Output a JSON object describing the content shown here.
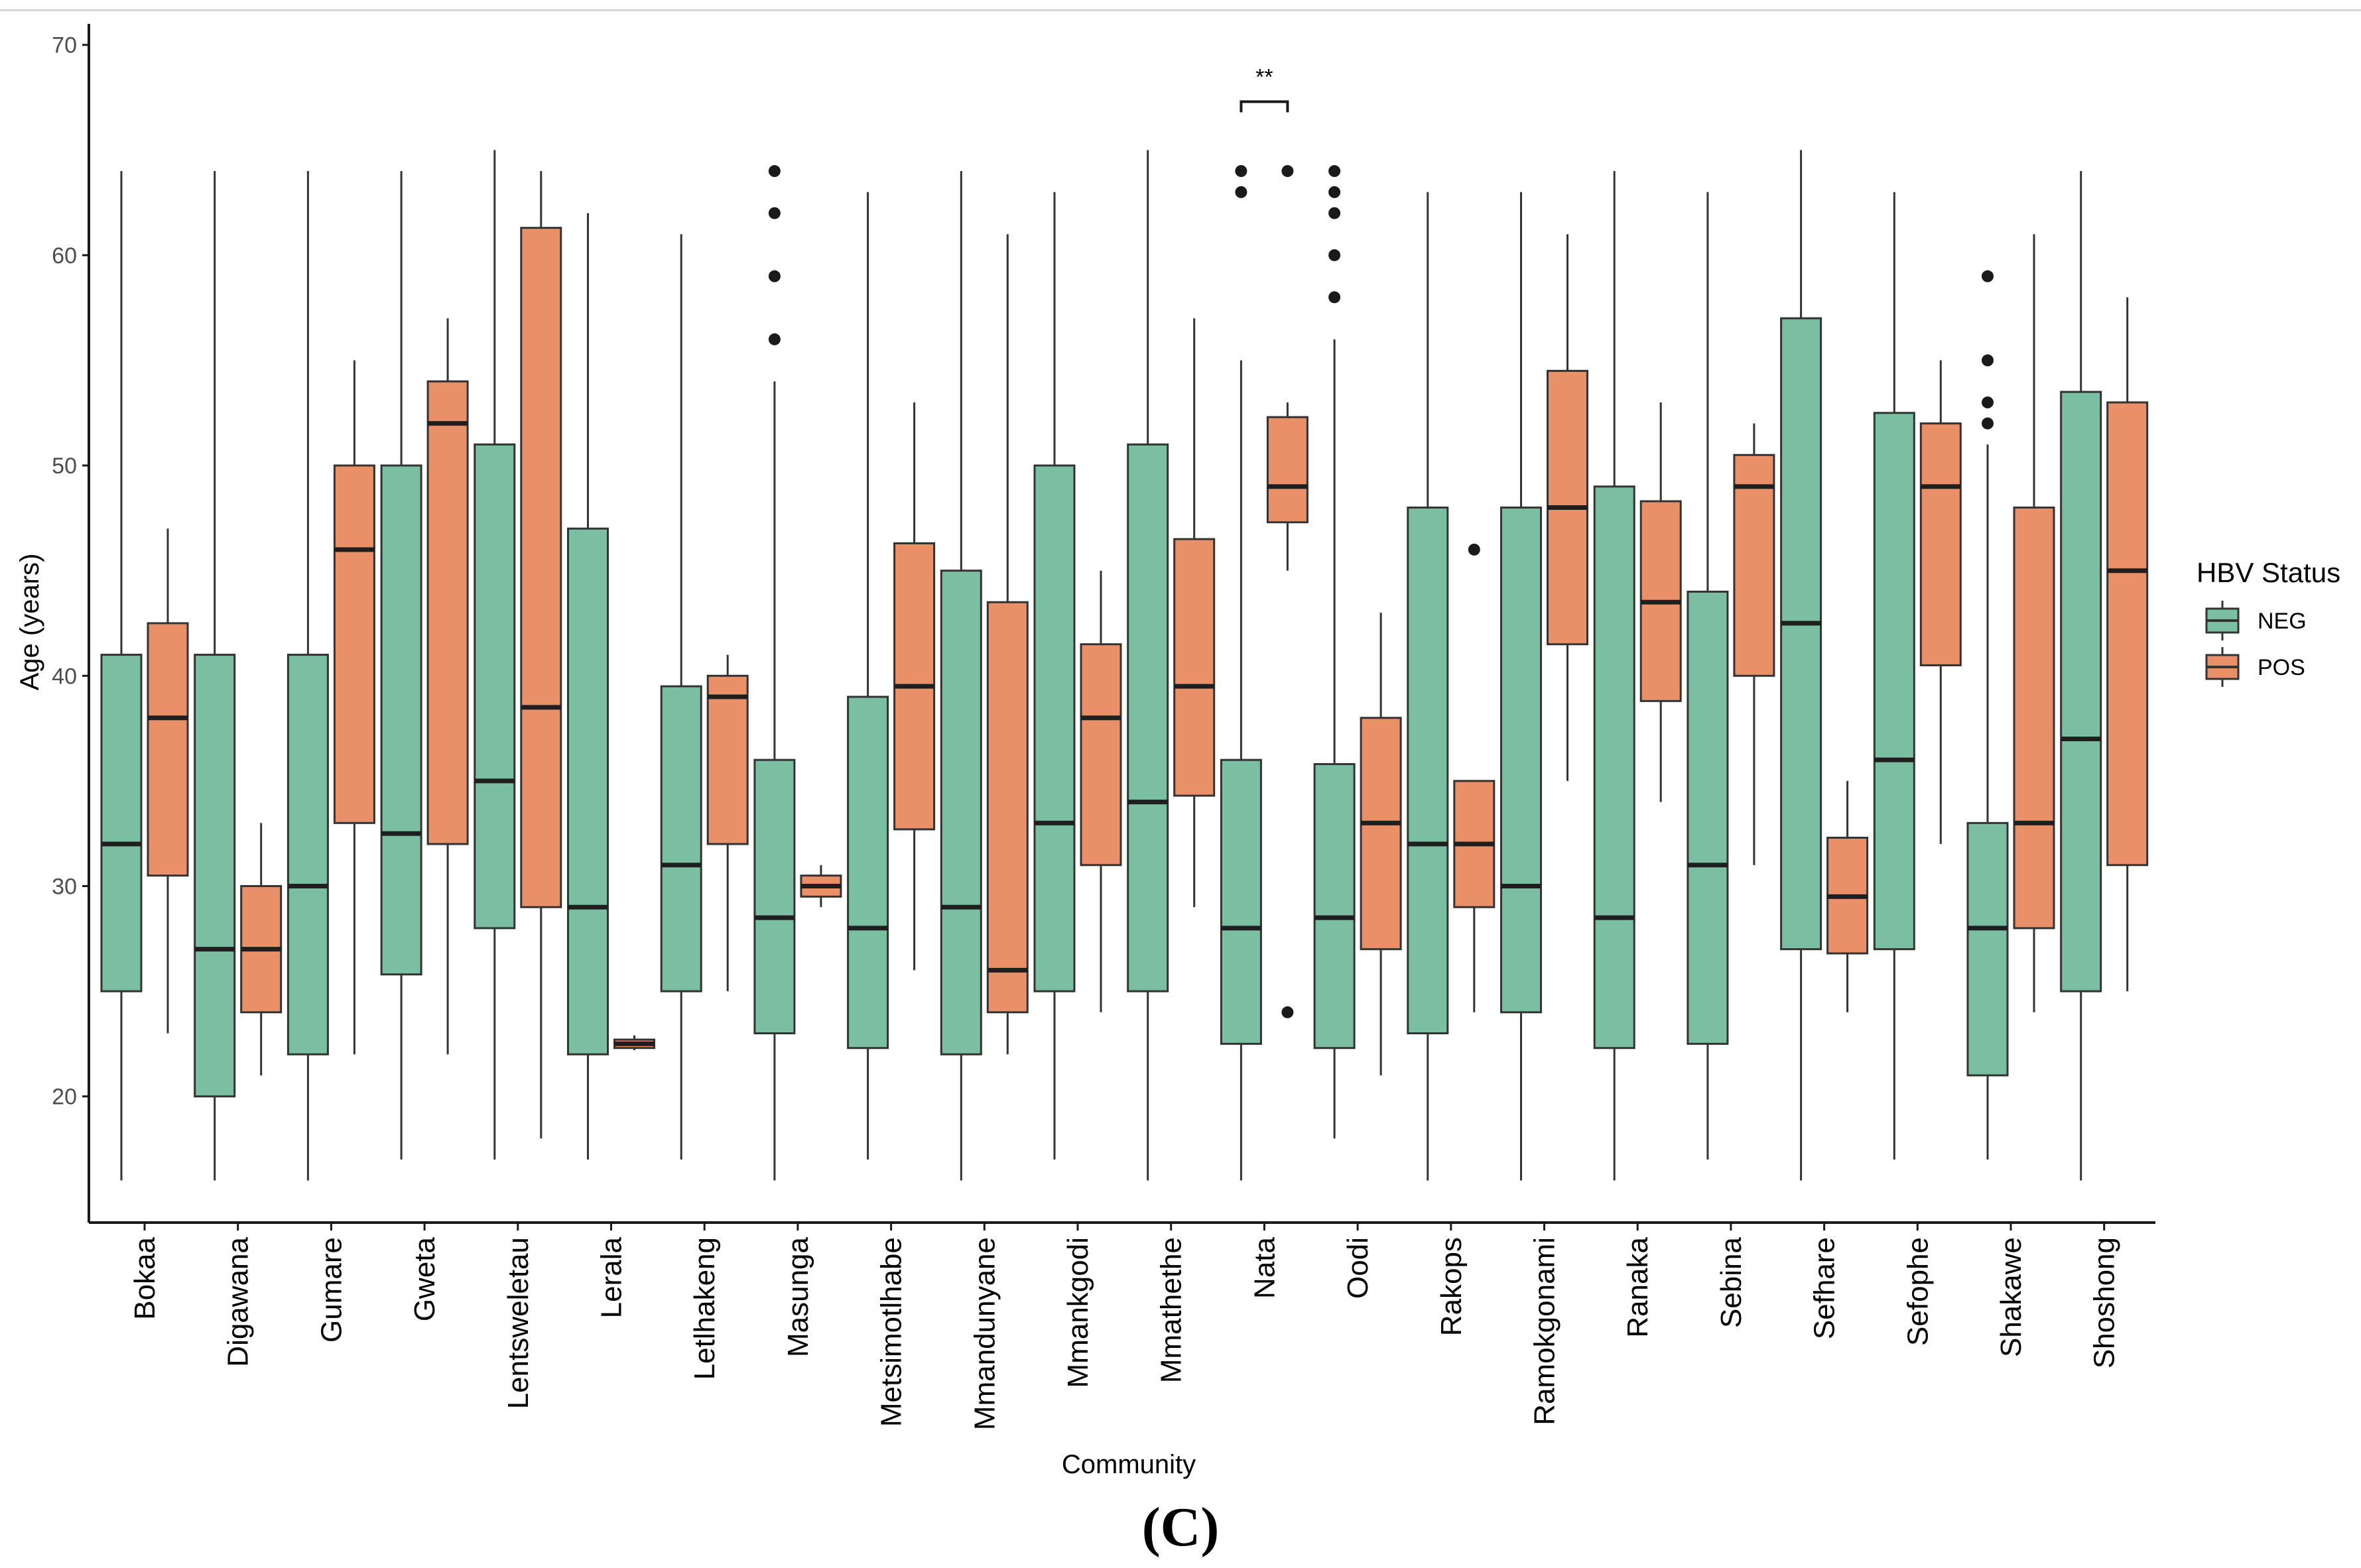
{
  "panel_label": "(C)",
  "chart_data": {
    "type": "box",
    "title": "",
    "xlabel": "Community",
    "ylabel": "Age (years)",
    "ylim": [
      14,
      71
    ],
    "yticks": [
      20,
      30,
      40,
      50,
      60,
      70
    ],
    "legend": {
      "title": "HBV Status",
      "position": "right",
      "entries": [
        {
          "name": "NEG",
          "color": "#7bbfa3"
        },
        {
          "name": "POS",
          "color": "#ea9068"
        }
      ]
    },
    "categories": [
      "Bokaa",
      "Digawana",
      "Gumare",
      "Gweta",
      "Lentsweletau",
      "Lerala",
      "Letlhakeng",
      "Masunga",
      "Metsimotlhabe",
      "Mmandunyane",
      "Mmankgodi",
      "Mmathethe",
      "Nata",
      "Oodi",
      "Rakops",
      "Ramokgonami",
      "Ranaka",
      "Sebina",
      "Sefhare",
      "Sefophe",
      "Shakawe",
      "Shoshong"
    ],
    "series": [
      {
        "name": "NEG",
        "color": "#7bbfa3",
        "boxes": [
          {
            "min": 16,
            "q1": 25,
            "median": 32,
            "q3": 41,
            "max": 64,
            "outliers": []
          },
          {
            "min": 16,
            "q1": 20,
            "median": 27,
            "q3": 41,
            "max": 64,
            "outliers": []
          },
          {
            "min": 16,
            "q1": 22,
            "median": 30,
            "q3": 41,
            "max": 64,
            "outliers": []
          },
          {
            "min": 17,
            "q1": 25.8,
            "median": 32.5,
            "q3": 50,
            "max": 64,
            "outliers": []
          },
          {
            "min": 17,
            "q1": 28,
            "median": 35,
            "q3": 51,
            "max": 65,
            "outliers": []
          },
          {
            "min": 17,
            "q1": 22,
            "median": 29,
            "q3": 47,
            "max": 62,
            "outliers": []
          },
          {
            "min": 17,
            "q1": 25,
            "median": 31,
            "q3": 39.5,
            "max": 61,
            "outliers": []
          },
          {
            "min": 16,
            "q1": 23,
            "median": 28.5,
            "q3": 36,
            "max": 54,
            "outliers": [
              56,
              59,
              62,
              64
            ]
          },
          {
            "min": 17,
            "q1": 22.3,
            "median": 28,
            "q3": 39,
            "max": 63,
            "outliers": []
          },
          {
            "min": 16,
            "q1": 22,
            "median": 29,
            "q3": 45,
            "max": 64,
            "outliers": []
          },
          {
            "min": 17,
            "q1": 25,
            "median": 33,
            "q3": 50,
            "max": 63,
            "outliers": []
          },
          {
            "min": 16,
            "q1": 25,
            "median": 34,
            "q3": 51,
            "max": 65,
            "outliers": []
          },
          {
            "min": 16,
            "q1": 22.5,
            "median": 28,
            "q3": 36,
            "max": 55,
            "outliers": [
              63,
              64
            ]
          },
          {
            "min": 18,
            "q1": 22.3,
            "median": 28.5,
            "q3": 35.8,
            "max": 56,
            "outliers": [
              58,
              60,
              62,
              63,
              64
            ]
          },
          {
            "min": 16,
            "q1": 23,
            "median": 32,
            "q3": 48,
            "max": 63,
            "outliers": []
          },
          {
            "min": 16,
            "q1": 24,
            "median": 30,
            "q3": 48,
            "max": 63,
            "outliers": []
          },
          {
            "min": 16,
            "q1": 22.3,
            "median": 28.5,
            "q3": 49,
            "max": 64,
            "outliers": []
          },
          {
            "min": 17,
            "q1": 22.5,
            "median": 31,
            "q3": 44,
            "max": 63,
            "outliers": []
          },
          {
            "min": 16,
            "q1": 27,
            "median": 42.5,
            "q3": 57,
            "max": 65,
            "outliers": []
          },
          {
            "min": 17,
            "q1": 27,
            "median": 36,
            "q3": 52.5,
            "max": 63,
            "outliers": []
          },
          {
            "min": 17,
            "q1": 21,
            "median": 28,
            "q3": 33,
            "max": 51,
            "outliers": [
              52,
              53,
              55,
              59
            ]
          },
          {
            "min": 16,
            "q1": 25,
            "median": 37,
            "q3": 53.5,
            "max": 64,
            "outliers": []
          }
        ]
      },
      {
        "name": "POS",
        "color": "#ea9068",
        "boxes": [
          {
            "min": 23,
            "q1": 30.5,
            "median": 38,
            "q3": 42.5,
            "max": 47,
            "outliers": []
          },
          {
            "min": 21,
            "q1": 24,
            "median": 27,
            "q3": 30,
            "max": 33,
            "outliers": []
          },
          {
            "min": 22,
            "q1": 33,
            "median": 46,
            "q3": 50,
            "max": 55,
            "outliers": []
          },
          {
            "min": 22,
            "q1": 32,
            "median": 52,
            "q3": 54,
            "max": 57,
            "outliers": []
          },
          {
            "min": 18,
            "q1": 29,
            "median": 38.5,
            "q3": 61.3,
            "max": 64,
            "outliers": []
          },
          {
            "min": 22.2,
            "q1": 22.3,
            "median": 22.5,
            "q3": 22.7,
            "max": 22.9,
            "outliers": []
          },
          {
            "min": 25,
            "q1": 32,
            "median": 39,
            "q3": 40,
            "max": 41,
            "outliers": []
          },
          {
            "min": 29,
            "q1": 29.5,
            "median": 30,
            "q3": 30.5,
            "max": 31,
            "outliers": []
          },
          {
            "min": 26,
            "q1": 32.7,
            "median": 39.5,
            "q3": 46.3,
            "max": 53,
            "outliers": []
          },
          {
            "min": 22,
            "q1": 24,
            "median": 26,
            "q3": 43.5,
            "max": 61,
            "outliers": []
          },
          {
            "min": 24,
            "q1": 31,
            "median": 38,
            "q3": 41.5,
            "max": 45,
            "outliers": []
          },
          {
            "min": 29,
            "q1": 34.3,
            "median": 39.5,
            "q3": 46.5,
            "max": 57,
            "outliers": []
          },
          {
            "min": 45,
            "q1": 47.3,
            "median": 49,
            "q3": 52.3,
            "max": 53,
            "outliers": [
              24,
              64
            ]
          },
          {
            "min": 21,
            "q1": 27,
            "median": 33,
            "q3": 38,
            "max": 43,
            "outliers": []
          },
          {
            "min": 24,
            "q1": 29,
            "median": 32,
            "q3": 35,
            "max": 35,
            "outliers": [
              46
            ]
          },
          {
            "min": 35,
            "q1": 41.5,
            "median": 48,
            "q3": 54.5,
            "max": 61,
            "outliers": []
          },
          {
            "min": 34,
            "q1": 38.8,
            "median": 43.5,
            "q3": 48.3,
            "max": 53,
            "outliers": []
          },
          {
            "min": 31,
            "q1": 40,
            "median": 49,
            "q3": 50.5,
            "max": 52,
            "outliers": []
          },
          {
            "min": 24,
            "q1": 26.8,
            "median": 29.5,
            "q3": 32.3,
            "max": 35,
            "outliers": []
          },
          {
            "min": 32,
            "q1": 40.5,
            "median": 49,
            "q3": 52,
            "max": 55,
            "outliers": []
          },
          {
            "min": 24,
            "q1": 28,
            "median": 33,
            "q3": 48,
            "max": 61,
            "outliers": []
          },
          {
            "min": 25,
            "q1": 31,
            "median": 45,
            "q3": 53,
            "max": 58,
            "outliers": []
          }
        ]
      }
    ],
    "annotations": [
      {
        "text": "**",
        "category": "Nata",
        "y": 67.3
      }
    ]
  }
}
